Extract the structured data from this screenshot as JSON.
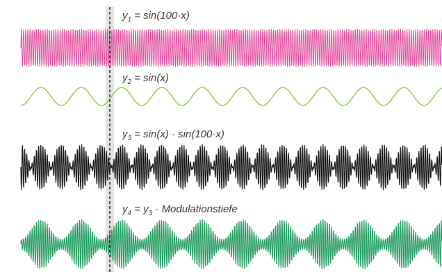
{
  "labels": {
    "y1": {
      "var": "y",
      "sub": "1",
      "expr": " = sin(100·x)"
    },
    "y2": {
      "var": "y",
      "sub": "2",
      "expr": " = sin(x)"
    },
    "y3": {
      "var": "y",
      "sub": "3",
      "expr": " = sin(x) · sin(100·x)"
    },
    "y4": {
      "var": "y",
      "sub": "4",
      "mid": " = y",
      "sub2": "3",
      "expr": " · Modulationstiefe"
    }
  },
  "colors": {
    "y1": "#e0469a",
    "y2": "#8cc63f",
    "y3": "#111111",
    "y4": "#1f9a5e",
    "marker_band": "#d9d9d9",
    "marker_line": "#222222",
    "label": "#333333"
  }
}
